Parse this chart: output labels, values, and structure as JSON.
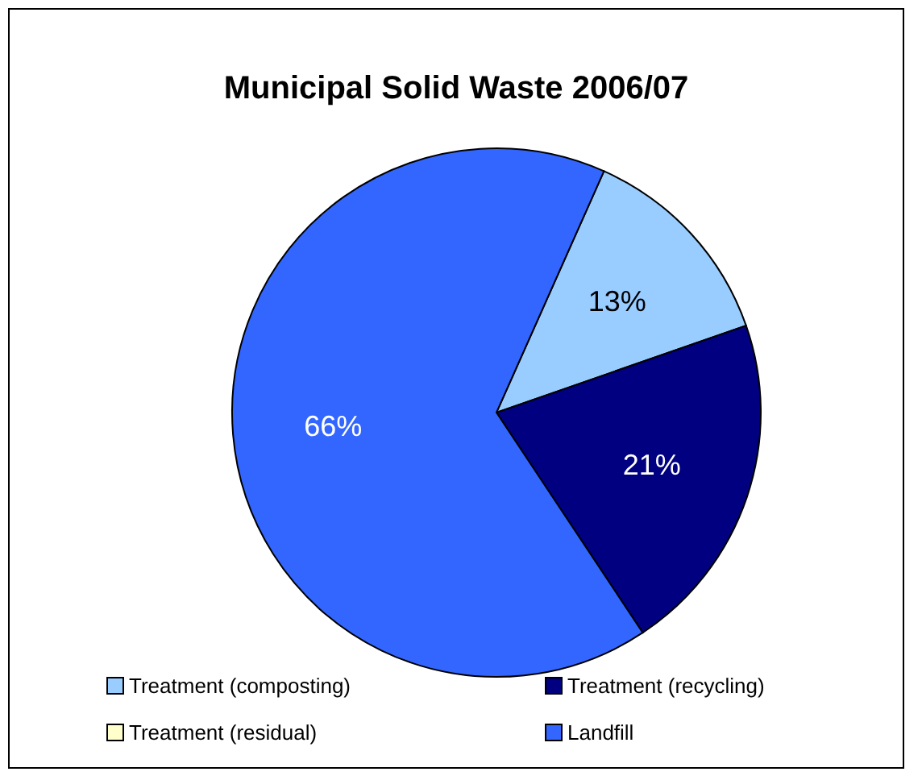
{
  "chart_data": {
    "type": "pie",
    "title": "Municipal Solid Waste 2006/07",
    "categories": [
      "Treatment (composting)",
      "Treatment (recycling)",
      "Treatment (residual)",
      "Landfill"
    ],
    "values": [
      13,
      21,
      0,
      66
    ],
    "colors": [
      "#99ccff",
      "#000080",
      "#ffffcc",
      "#3366ff"
    ],
    "value_labels": [
      "13%",
      "21%",
      null,
      "66%"
    ],
    "legend": "bottom"
  }
}
